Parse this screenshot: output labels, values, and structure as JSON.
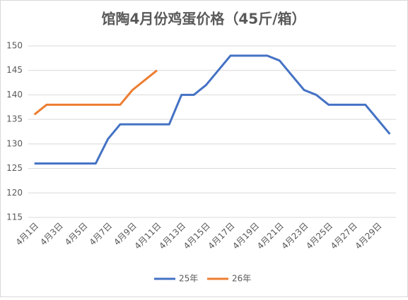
{
  "chart_data": {
    "type": "line",
    "title": "馆陶4月份鸡蛋价格（45斤/箱）",
    "categories": [
      "4月1日",
      null,
      "4月3日",
      null,
      "4月5日",
      null,
      "4月7日",
      null,
      "4月9日",
      null,
      "4月11日",
      null,
      "4月13日",
      null,
      "4月15日",
      null,
      "4月17日",
      null,
      "4月19日",
      null,
      "4月21日",
      null,
      "4月23日",
      null,
      "4月25日",
      null,
      "4月27日",
      null,
      "4月29日",
      null
    ],
    "series": [
      {
        "name": "25年",
        "color": "#4472c4",
        "values": [
          126,
          126,
          126,
          126,
          126,
          126,
          131,
          134,
          134,
          134,
          134,
          134,
          140,
          140,
          142,
          145,
          148,
          148,
          148,
          148,
          147,
          144,
          141,
          140,
          138,
          138,
          138,
          138,
          135,
          132
        ]
      },
      {
        "name": "26年",
        "color": "#ed7d31",
        "values": [
          136,
          138,
          138,
          138,
          138,
          138,
          138,
          138,
          141,
          143,
          145,
          null,
          null,
          null,
          null,
          null,
          null,
          null,
          null,
          null,
          null,
          null,
          null,
          null,
          null,
          null,
          null,
          null,
          null,
          null
        ]
      }
    ],
    "ylim": [
      115,
      150
    ],
    "yticks": [
      115,
      120,
      125,
      130,
      135,
      140,
      145,
      150
    ],
    "grid": true,
    "legend": "bottom"
  }
}
